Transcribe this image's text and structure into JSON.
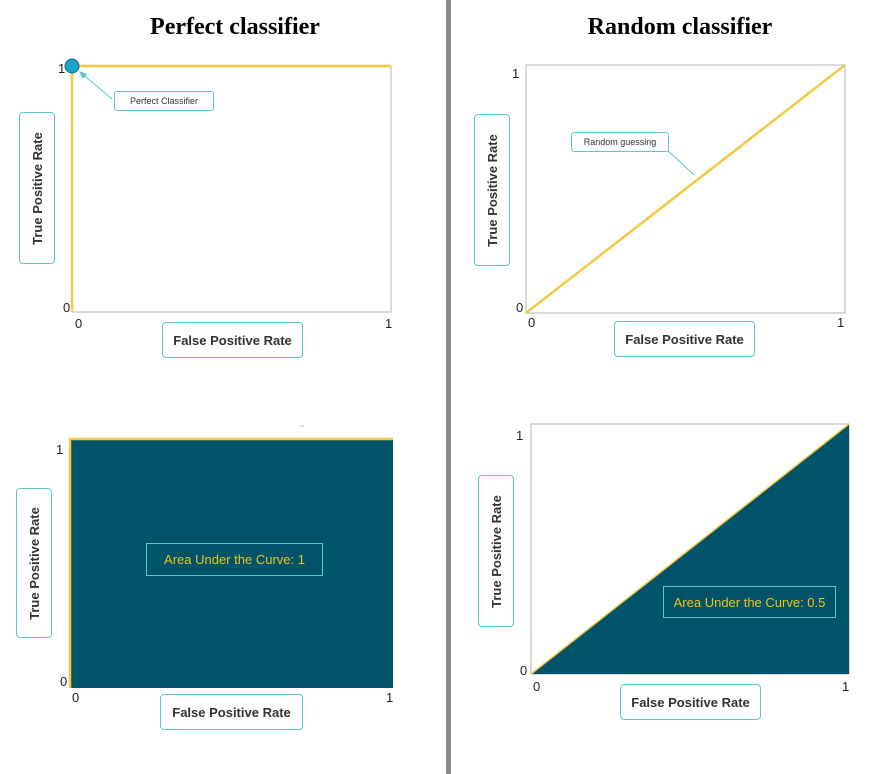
{
  "titles": {
    "left": "Perfect classifier",
    "right": "Random classifier"
  },
  "colors": {
    "curve": "#f6c945",
    "fill": "#01536a",
    "marker": "#1aa3c8",
    "label_border": "#5cc6cf",
    "auc_text": "#f2c21b"
  },
  "chart_data": [
    {
      "type": "line",
      "id": "perfect-roc",
      "title": "Perfect classifier",
      "xlabel": "False Positive Rate",
      "ylabel": "True Positive Rate",
      "x": [
        0,
        0,
        1
      ],
      "y": [
        0,
        1,
        1
      ],
      "xlim": [
        0,
        1
      ],
      "ylim": [
        0,
        1
      ],
      "x_ticks": [
        "0",
        "1"
      ],
      "y_ticks": [
        "0",
        "1"
      ],
      "marker_point": {
        "x": 0,
        "y": 1
      },
      "annotation": "Perfect Classifier"
    },
    {
      "type": "line",
      "id": "random-roc",
      "title": "Random classifier",
      "xlabel": "False Positive Rate",
      "ylabel": "True Positive Rate",
      "x": [
        0,
        1
      ],
      "y": [
        0,
        1
      ],
      "xlim": [
        0,
        1
      ],
      "ylim": [
        0,
        1
      ],
      "x_ticks": [
        "0",
        "1"
      ],
      "y_ticks": [
        "0",
        "1"
      ],
      "annotation": "Random guessing"
    },
    {
      "type": "area",
      "id": "perfect-auc",
      "xlabel": "False Positive Rate",
      "ylabel": "True Positive Rate",
      "x": [
        0,
        0,
        1
      ],
      "y": [
        0,
        1,
        1
      ],
      "xlim": [
        0,
        1
      ],
      "ylim": [
        0,
        1
      ],
      "x_ticks": [
        "0",
        "1"
      ],
      "y_ticks": [
        "0",
        "1"
      ],
      "auc": 1,
      "annotation": "Area Under the Curve: 1"
    },
    {
      "type": "area",
      "id": "random-auc",
      "xlabel": "False Positive Rate",
      "ylabel": "True Positive Rate",
      "x": [
        0,
        1
      ],
      "y": [
        0,
        1
      ],
      "xlim": [
        0,
        1
      ],
      "ylim": [
        0,
        1
      ],
      "x_ticks": [
        "0",
        "1"
      ],
      "y_ticks": [
        "0",
        "1"
      ],
      "auc": 0.5,
      "annotation": "Area Under the Curve: 0.5"
    }
  ]
}
